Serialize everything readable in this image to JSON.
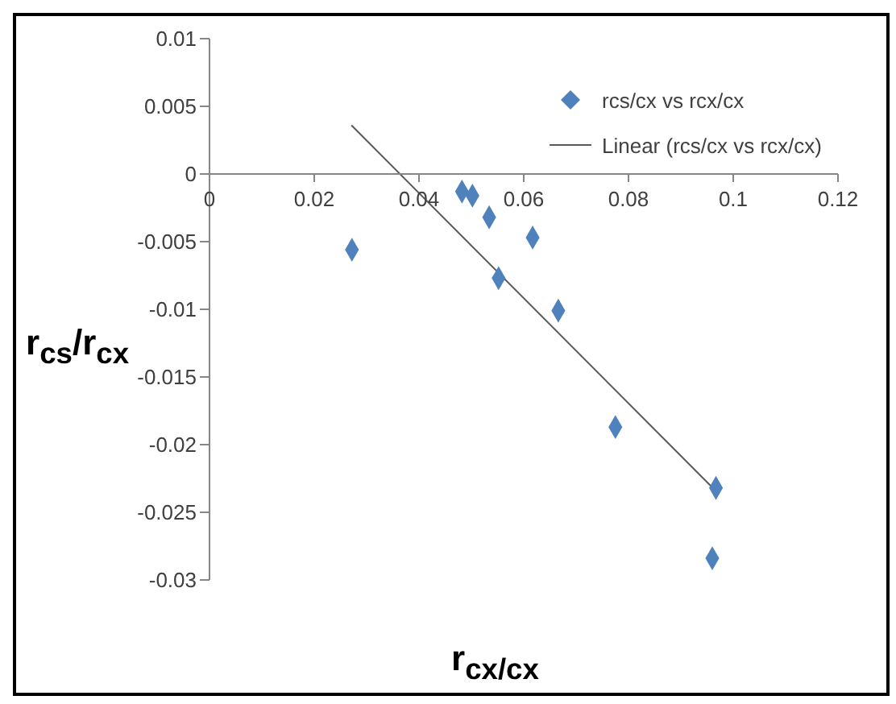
{
  "chart_data": {
    "type": "scatter",
    "xlabel": "r$_{cx/cx}$",
    "ylabel": "r$_{cs}$/r$_{cx}$",
    "xlim": [
      0,
      0.12
    ],
    "xticks": [
      0,
      0.02,
      0.04,
      0.06,
      0.08,
      0.1,
      0.12
    ],
    "ylim": [
      -0.03,
      0.01
    ],
    "yticks": [
      -0.03,
      -0.025,
      -0.02,
      -0.015,
      -0.01,
      -0.005,
      0,
      0.005,
      0.01
    ],
    "grid": false,
    "legend": "top right",
    "series": [
      {
        "name": "rcs/cx vs rcx/cx",
        "color": "#4f81bd",
        "marker": "diamond",
        "x": [
          0.0272,
          0.0482,
          0.0502,
          0.0534,
          0.0617,
          0.0552,
          0.0666,
          0.0775,
          0.0967,
          0.096
        ],
        "values": [
          -0.0056,
          -0.0013,
          -0.0016,
          -0.0032,
          -0.0047,
          -0.0077,
          -0.0101,
          -0.0187,
          -0.0232,
          -0.0284
        ]
      },
      {
        "type": "line",
        "name": "Linear (rcs/cx vs rcx/cx)",
        "color": "#595959",
        "x": [
          0.0271,
          0.0961
        ],
        "values": [
          0.0036,
          -0.0232
        ]
      }
    ]
  }
}
